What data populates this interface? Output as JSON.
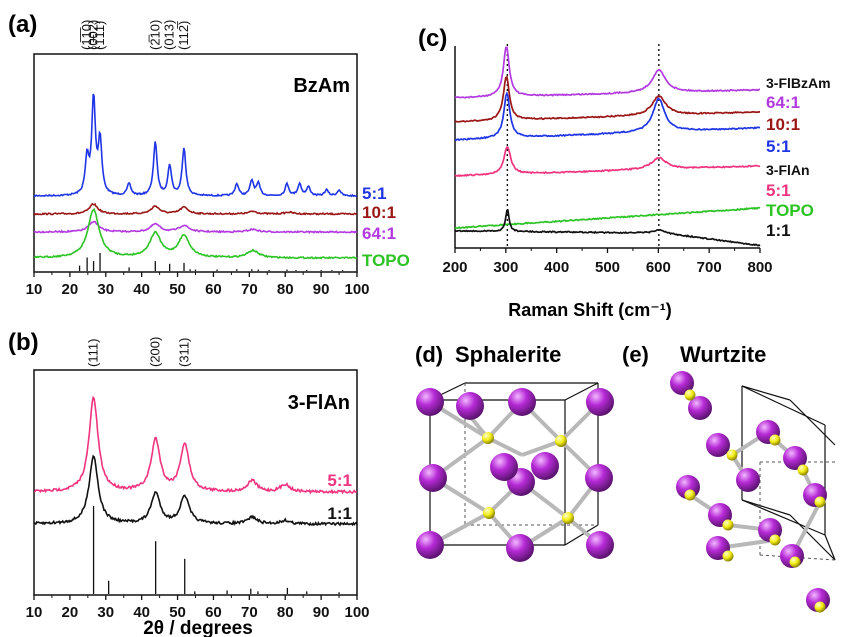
{
  "panels": {
    "a": {
      "tag": "(a)",
      "title": "BzAm"
    },
    "b": {
      "tag": "(b)",
      "title": "3-FlAn"
    },
    "c": {
      "tag": "(c)",
      "title_top": "3-FlBzAm",
      "title_mid": "3-FlAn"
    },
    "d": {
      "tag": "(d)",
      "title": "Sphalerite"
    },
    "e": {
      "tag": "(e)",
      "title": "Wurtzite"
    }
  },
  "colors": {
    "blue": "#1f35e6",
    "darkred": "#9b1616",
    "purple": "#b23ae0",
    "green": "#2cc324",
    "pink": "#f0337f",
    "black": "#111111",
    "atom_large": "#b62ad6",
    "atom_small": "#f2ec12",
    "bond": "#b8b8b8"
  },
  "icons": {
    "atom_large": "magenta-sphere",
    "atom_small": "yellow-sphere"
  },
  "chart_data": [
    {
      "panel": "a",
      "type": "line",
      "title": "BzAm",
      "xlabel": "",
      "ylabel": "",
      "xlim": [
        10,
        100
      ],
      "xticks": [
        "10",
        "20",
        "30",
        "40",
        "50",
        "60",
        "70",
        "80",
        "90",
        "100"
      ],
      "reflection_labels": [
        "(1̅1̅0)",
        "(002)",
        "(1̅11)",
        "(2̅10)",
        "(013)",
        "(112̅)"
      ],
      "series": [
        {
          "name": "5:1",
          "color": "blue",
          "peaks": [
            [
              24.8,
              0.6
            ],
            [
              26.6,
              1.6
            ],
            [
              28.4,
              0.9
            ],
            [
              36.5,
              0.2
            ],
            [
              43.8,
              0.9
            ],
            [
              47.8,
              0.5
            ],
            [
              51.8,
              0.8
            ],
            [
              66.5,
              0.2
            ],
            [
              70.7,
              0.25
            ],
            [
              72.5,
              0.2
            ],
            [
              80.5,
              0.2
            ],
            [
              84,
              0.2
            ],
            [
              86.5,
              0.15
            ],
            [
              91.5,
              0.1
            ],
            [
              95,
              0.1
            ]
          ]
        },
        {
          "name": "10:1",
          "color": "darkred",
          "peaks": [
            [
              26.6,
              0.45
            ],
            [
              43.8,
              0.35
            ],
            [
              51.8,
              0.3
            ],
            [
              71,
              0.12
            ],
            [
              81,
              0.08
            ]
          ]
        },
        {
          "name": "64:1",
          "color": "purple",
          "peaks": [
            [
              26.6,
              0.4
            ],
            [
              43.8,
              0.3
            ],
            [
              51.8,
              0.25
            ],
            [
              71,
              0.1
            ]
          ]
        },
        {
          "name": "TOPO",
          "color": "green",
          "peaks": [
            [
              26.6,
              1.0
            ],
            [
              43.8,
              0.5
            ],
            [
              51.8,
              0.45
            ],
            [
              71,
              0.15
            ]
          ]
        }
      ],
      "reference_sticks": [
        [
          22.7,
          0.3
        ],
        [
          24.8,
          0.75
        ],
        [
          26.6,
          0.55
        ],
        [
          28.4,
          1.0
        ],
        [
          36.5,
          0.2
        ],
        [
          43.8,
          0.55
        ],
        [
          47.8,
          0.4
        ],
        [
          51.8,
          0.45
        ],
        [
          53.5,
          0.1
        ],
        [
          55,
          0.08
        ],
        [
          61,
          0.08
        ],
        [
          66.5,
          0.1
        ],
        [
          70.7,
          0.1
        ],
        [
          72.5,
          0.08
        ],
        [
          75.5,
          0.06
        ],
        [
          80.5,
          0.08
        ],
        [
          83,
          0.06
        ],
        [
          86,
          0.06
        ],
        [
          90,
          0.05
        ],
        [
          93,
          0.05
        ],
        [
          96,
          0.05
        ]
      ]
    },
    {
      "panel": "b",
      "type": "line",
      "title": "3-FlAn",
      "xlabel": "2θ / degrees",
      "ylabel": "",
      "xlim": [
        10,
        100
      ],
      "xticks": [
        "10",
        "20",
        "30",
        "40",
        "50",
        "60",
        "70",
        "80",
        "90",
        "100"
      ],
      "reflection_labels": [
        "(111)",
        "(200)",
        "(311)"
      ],
      "series": [
        {
          "name": "5:1",
          "color": "pink",
          "peaks": [
            [
              26.6,
              1.0
            ],
            [
              43.9,
              0.55
            ],
            [
              52,
              0.5
            ],
            [
              70.8,
              0.12
            ],
            [
              80,
              0.08
            ]
          ]
        },
        {
          "name": "1:1",
          "color": "black",
          "peaks": [
            [
              26.6,
              1.0
            ],
            [
              43.9,
              0.45
            ],
            [
              52,
              0.4
            ],
            [
              70.8,
              0.1
            ],
            [
              80,
              0.05
            ]
          ]
        }
      ],
      "reference_sticks": [
        [
          26.6,
          1.0
        ],
        [
          30.8,
          0.15
        ],
        [
          43.9,
          0.6
        ],
        [
          52,
          0.4
        ],
        [
          54.8,
          0.03
        ],
        [
          63.8,
          0.04
        ],
        [
          70.4,
          0.06
        ],
        [
          72.4,
          0.03
        ],
        [
          80.6,
          0.07
        ],
        [
          86,
          0.03
        ],
        [
          95,
          0.02
        ]
      ]
    },
    {
      "panel": "c",
      "type": "line",
      "title": "",
      "xlabel": "Raman Shift (cm⁻¹)",
      "ylabel": "",
      "xlim": [
        200,
        800
      ],
      "xticks": [
        "200",
        "300",
        "400",
        "500",
        "600",
        "700",
        "800"
      ],
      "dotted_lines_x": [
        303,
        601
      ],
      "series": [
        {
          "name": "64:1",
          "color": "purple",
          "group": "3-FlBzAm",
          "peaks": [
            [
              301,
              1.0
            ],
            [
              601,
              0.45
            ]
          ]
        },
        {
          "name": "10:1",
          "color": "darkred",
          "group": "3-FlBzAm",
          "peaks": [
            [
              301,
              0.8
            ],
            [
              601,
              0.35
            ]
          ]
        },
        {
          "name": "5:1",
          "color": "blue",
          "group": "3-FlBzAm",
          "peaks": [
            [
              302,
              0.75
            ],
            [
              601,
              0.55
            ]
          ]
        },
        {
          "name": "5:1",
          "color": "pink",
          "group": "3-FlAn",
          "peaks": [
            [
              303,
              0.6
            ],
            [
              601,
              0.25
            ]
          ]
        },
        {
          "name": "TOPO",
          "color": "green",
          "peaks": [
            [
              303,
              0.05
            ],
            [
              601,
              0.02
            ]
          ]
        },
        {
          "name": "1:1",
          "color": "black",
          "peaks": [
            [
              303,
              0.7
            ],
            [
              601,
              0.1
            ]
          ]
        }
      ]
    }
  ]
}
